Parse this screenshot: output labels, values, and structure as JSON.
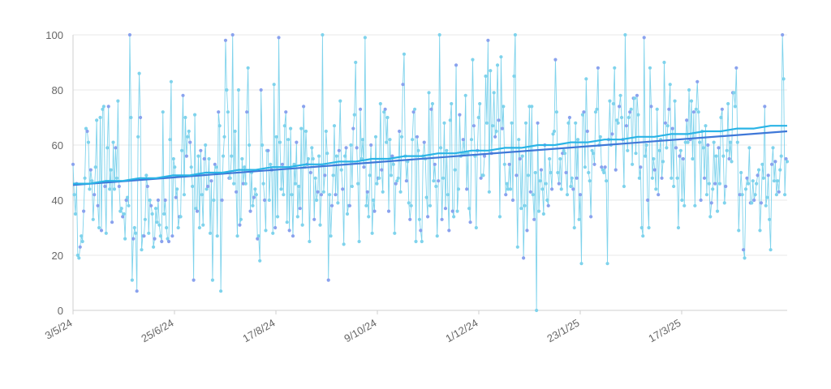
{
  "chart_data": {
    "type": "line",
    "title": "",
    "xlabel": "",
    "ylabel": "",
    "x_range": [
      "3/5/24",
      "11/5/25"
    ],
    "ylim": [
      0,
      100
    ],
    "y_ticks": [
      "0",
      "20",
      "40",
      "60",
      "80",
      "100"
    ],
    "x_tick_labels": [
      "3/5/24",
      "25/6/24",
      "17/8/24",
      "9/10/24",
      "1/12/24",
      "23/1/25",
      "17/3/25"
    ],
    "grid": "horizontal",
    "legend": "none",
    "series": [
      {
        "kind": "daily values (dots joined by thin line)",
        "color": "#7fd3ec",
        "point_color": "#8aa2ee",
        "values": [
          53,
          42,
          35,
          46,
          20,
          19,
          23,
          27,
          25,
          36,
          48,
          66,
          65,
          61,
          44,
          51,
          47,
          33,
          42,
          52,
          69,
          38,
          30,
          70,
          29,
          73,
          74,
          45,
          28,
          59,
          74,
          44,
          51,
          32,
          61,
          44,
          59,
          48,
          76,
          45,
          36,
          37,
          34,
          35,
          26,
          40,
          41,
          38,
          100,
          70,
          11,
          26,
          30,
          28,
          7,
          63,
          86,
          70,
          22,
          27,
          27,
          33,
          49,
          45,
          28,
          40,
          38,
          35,
          23,
          26,
          37,
          32,
          40,
          31,
          27,
          25,
          72,
          35,
          40,
          30,
          26,
          25,
          62,
          83,
          27,
          55,
          52,
          41,
          44,
          30,
          34,
          34,
          58,
          78,
          42,
          70,
          56,
          63,
          65,
          61,
          52,
          45,
          11,
          71,
          37,
          36,
          56,
          30,
          58,
          42,
          31,
          55,
          60,
          44,
          45,
          55,
          28,
          47,
          11,
          40,
          53,
          52,
          27,
          72,
          67,
          7,
          40,
          56,
          63,
          98,
          80,
          72,
          48,
          48,
          56,
          100,
          46,
          65,
          43,
          27,
          80,
          31,
          33,
          55,
          46,
          52,
          46,
          72,
          88,
          60,
          36,
          50,
          38,
          41,
          44,
          42,
          26,
          27,
          18,
          80,
          60,
          46,
          40,
          29,
          58,
          58,
          40,
          53,
          51,
          28,
          82,
          30,
          63,
          34,
          99,
          61,
          44,
          53,
          42,
          67,
          72,
          32,
          62,
          29,
          66,
          42,
          27,
          53,
          46,
          61,
          34,
          45,
          37,
          66,
          31,
          74,
          52,
          65,
          53,
          55,
          25,
          50,
          59,
          55,
          33,
          48,
          40,
          43,
          56,
          31,
          42,
          100,
          43,
          49,
          65,
          57,
          11,
          42,
          27,
          38,
          49,
          67,
          42,
          56,
          39,
          58,
          76,
          51,
          44,
          24,
          56,
          59,
          35,
          38,
          38,
          60,
          45,
          66,
          71,
          90,
          59,
          46,
          25,
          73,
          55,
          62,
          52,
          99,
          38,
          43,
          34,
          49,
          60,
          28,
          40,
          36,
          63,
          46,
          48,
          48,
          75,
          51,
          43,
          72,
          73,
          61,
          70,
          36,
          62,
          49,
          56,
          53,
          28,
          46,
          47,
          48,
          65,
          43,
          63,
          82,
          93,
          56,
          47,
          54,
          39,
          33,
          38,
          62,
          72,
          73,
          25,
          63,
          58,
          33,
          29,
          25,
          56,
          61,
          55,
          41,
          34,
          79,
          38,
          73,
          75,
          47,
          53,
          45,
          27,
          47,
          100,
          59,
          33,
          48,
          68,
          37,
          58,
          42,
          29,
          69,
          75,
          36,
          34,
          51,
          89,
          36,
          44,
          71,
          56,
          57,
          62,
          57,
          78,
          44,
          57,
          37,
          32,
          62,
          91,
          67,
          56,
          30,
          58,
          70,
          75,
          48,
          49,
          49,
          56,
          85,
          68,
          98,
          43,
          87,
          57,
          67,
          79,
          63,
          65,
          89,
          69,
          34,
          92,
          66,
          74,
          53,
          42,
          46,
          44,
          53,
          44,
          68,
          40,
          85,
          100,
          49,
          23,
          62,
          55,
          37,
          56,
          19,
          38,
          68,
          29,
          49,
          74,
          43,
          74,
          42,
          33,
          50,
          0,
          68,
          36,
          47,
          51,
          44,
          35,
          60,
          46,
          40,
          38,
          55,
          50,
          44,
          64,
          65,
          91,
          72,
          50,
          46,
          55,
          44,
          57,
          58,
          57,
          50,
          42,
          68,
          70,
          45,
          48,
          44,
          30,
          68,
          48,
          62,
          33,
          42,
          17,
          71,
          72,
          52,
          84,
          65,
          50,
          47,
          34,
          58,
          57,
          53,
          72,
          73,
          88,
          60,
          63,
          52,
          51,
          50,
          52,
          47,
          17,
          62,
          76,
          60,
          64,
          75,
          88,
          51,
          69,
          68,
          74,
          78,
          70,
          62,
          45,
          100,
          67,
          58,
          70,
          72,
          73,
          53,
          77,
          77,
          57,
          78,
          71,
          48,
          52,
          30,
          27,
          99,
          56,
          60,
          40,
          30,
          88,
          74,
          48,
          55,
          51,
          44,
          73,
          42,
          58,
          62,
          48,
          54,
          90,
          68,
          59,
          67,
          73,
          82,
          48,
          66,
          45,
          76,
          59,
          48,
          30,
          56,
          58,
          40,
          55,
          38,
          61,
          69,
          61,
          80,
          62,
          76,
          55,
          72,
          38,
          73,
          83,
          72,
          61,
          40,
          65,
          59,
          48,
          67,
          42,
          60,
          46,
          34,
          39,
          44,
          61,
          46,
          56,
          36,
          59,
          46,
          70,
          73,
          56,
          39,
          45,
          58,
          75,
          55,
          61,
          54,
          79,
          79,
          74,
          88,
          61,
          29,
          42,
          50,
          42,
          22,
          19,
          44,
          48,
          46,
          59,
          39,
          39,
          47,
          40,
          42,
          46,
          49,
          51,
          29,
          39,
          53,
          48,
          74,
          38,
          41,
          49,
          33,
          22,
          53,
          59,
          47,
          54,
          42,
          47,
          43,
          51,
          56,
          100,
          84,
          42,
          55,
          54
        ]
      },
      {
        "kind": "moving average",
        "color": "#2ab4e6",
        "values": [
          46,
          46,
          47,
          47,
          48,
          48,
          49,
          49,
          50,
          50,
          51,
          51,
          52,
          52,
          53,
          53,
          54,
          54,
          55,
          55,
          56,
          56,
          57,
          57,
          58,
          58,
          59,
          59,
          60,
          60,
          61,
          61,
          62,
          62,
          63,
          63,
          64,
          64,
          65,
          65,
          66,
          66,
          67,
          67
        ]
      },
      {
        "kind": "trend",
        "color": "#3f78d8",
        "values": [
          45.5,
          65
        ]
      }
    ]
  }
}
